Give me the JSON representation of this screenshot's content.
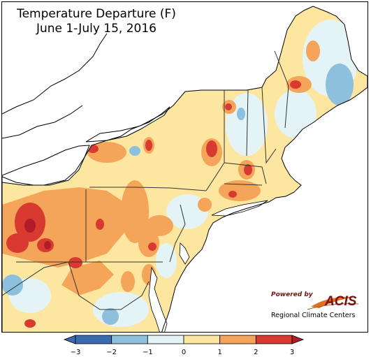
{
  "title": {
    "line1": "Temperature Departure (F)",
    "line2": "June 1-July 15, 2016"
  },
  "logo": {
    "powered_by": "Powered by",
    "name": "ACIS",
    "subtitle": "Regional Climate Centers"
  },
  "legend": {
    "ticks": [
      "−3",
      "−2",
      "−1",
      "0",
      "1",
      "2",
      "3"
    ],
    "colors": [
      "#3a6bb0",
      "#8cc0dd",
      "#e4f4f6",
      "#fde7a0",
      "#f5a55a",
      "#d93a30"
    ],
    "under_color": "#3a6bb0",
    "over_color": "#b01c28"
  },
  "map_colors": {
    "land_base": "#fde7a0",
    "water": "#ffffff",
    "pale": "#e4f4f6",
    "lightblue": "#8cc0dd",
    "blue": "#3a6bb0",
    "orange": "#f5a55a",
    "red": "#d93a30",
    "darkred": "#b01c28"
  }
}
